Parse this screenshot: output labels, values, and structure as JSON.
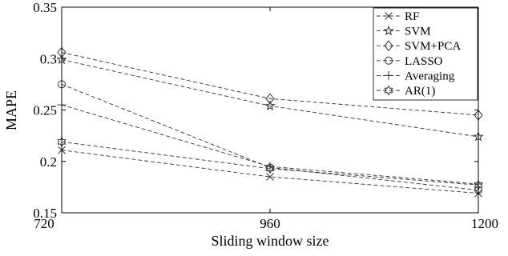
{
  "chart_data": {
    "type": "line",
    "xlabel": "Sliding window size",
    "ylabel": "MAPE",
    "x": [
      720,
      960,
      1200
    ],
    "xticks": [
      "720",
      "960",
      "1200"
    ],
    "xlim": [
      720,
      1200
    ],
    "ylim": [
      0.15,
      0.35
    ],
    "yticks": [
      "0.15",
      "0.2",
      "0.25",
      "0.3",
      "0.35"
    ],
    "grid": false,
    "legend_position": "top-right",
    "series": [
      {
        "name": "RF",
        "marker": "x",
        "values": [
          0.211,
          0.185,
          0.169
        ]
      },
      {
        "name": "SVM",
        "marker": "star",
        "values": [
          0.299,
          0.254,
          0.224
        ]
      },
      {
        "name": "SVM+PCA",
        "marker": "diamond",
        "values": [
          0.306,
          0.261,
          0.245
        ]
      },
      {
        "name": "LASSO",
        "marker": "circle",
        "values": [
          0.275,
          0.194,
          0.172
        ]
      },
      {
        "name": "Averaging",
        "marker": "plus",
        "values": [
          0.255,
          0.195,
          0.178
        ]
      },
      {
        "name": "AR(1)",
        "marker": "hexagram",
        "values": [
          0.219,
          0.193,
          0.177
        ]
      }
    ]
  }
}
